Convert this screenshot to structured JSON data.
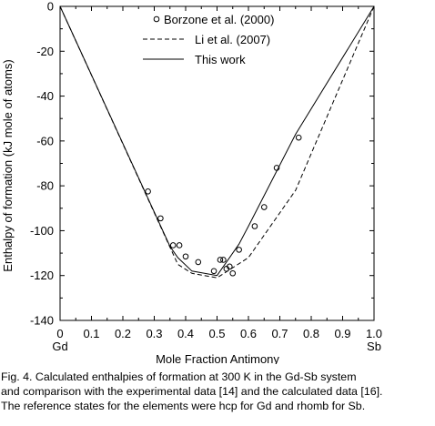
{
  "chart_data": {
    "type": "line",
    "xlabel": "Mole  Fraction Antimony",
    "ylabel": "Enthalpy of formation (kJ mole of atoms)",
    "xlim": [
      0,
      1.0
    ],
    "ylim": [
      -140,
      0
    ],
    "x_ticks": [
      0,
      0.1,
      0.2,
      0.3,
      0.4,
      0.5,
      0.6,
      0.7,
      0.8,
      0.9,
      1.0
    ],
    "x_tick_labels": [
      "0",
      "0.1",
      "0.2",
      "0.3",
      "0.4",
      "0.5",
      "0.6",
      "0.7",
      "0.8",
      "0.9",
      "1.0"
    ],
    "y_ticks": [
      0,
      -20,
      -40,
      -60,
      -80,
      -100,
      -120,
      -140
    ],
    "y_tick_labels": [
      "0",
      "-20",
      "-40",
      "-60",
      "-80",
      "-100",
      "-120",
      "-140"
    ],
    "x_end_labels": {
      "left": "Gd",
      "right": "Sb"
    },
    "grid": false,
    "legend_position": "top-right",
    "series": [
      {
        "name": "Borzone et al. (2000)",
        "style": "open-circle",
        "points": [
          [
            0.28,
            -82.5
          ],
          [
            0.32,
            -94.5
          ],
          [
            0.36,
            -106.5
          ],
          [
            0.38,
            -106.5
          ],
          [
            0.4,
            -111.5
          ],
          [
            0.44,
            -114
          ],
          [
            0.49,
            -118
          ],
          [
            0.51,
            -113
          ],
          [
            0.52,
            -113
          ],
          [
            0.53,
            -117
          ],
          [
            0.54,
            -116
          ],
          [
            0.55,
            -119
          ],
          [
            0.57,
            -108.5
          ],
          [
            0.62,
            -98
          ],
          [
            0.65,
            -89.5
          ],
          [
            0.69,
            -72
          ],
          [
            0.76,
            -58.5
          ]
        ]
      },
      {
        "name": "Li et al. (2007)",
        "style": "dashed",
        "points": [
          [
            0,
            0
          ],
          [
            0.375,
            -115
          ],
          [
            0.42,
            -119
          ],
          [
            0.5,
            -121
          ],
          [
            0.6,
            -112
          ],
          [
            0.75,
            -82
          ],
          [
            1.0,
            0
          ]
        ]
      },
      {
        "name": "This work",
        "style": "solid",
        "points": [
          [
            0,
            0
          ],
          [
            0.35,
            -107
          ],
          [
            0.375,
            -112
          ],
          [
            0.42,
            -118
          ],
          [
            0.5,
            -120
          ],
          [
            0.57,
            -106
          ],
          [
            0.6,
            -98
          ],
          [
            0.75,
            -57
          ],
          [
            1.0,
            0
          ]
        ]
      }
    ]
  },
  "caption": {
    "line1": "Fig. 4. Calculated enthalpies of formation at 300 K in the Gd-Sb system",
    "line2": "and comparison with the experimental data [14] and the calculated data [16].",
    "line3": "The reference states for the elements were hcp for Gd and rhomb for Sb."
  }
}
